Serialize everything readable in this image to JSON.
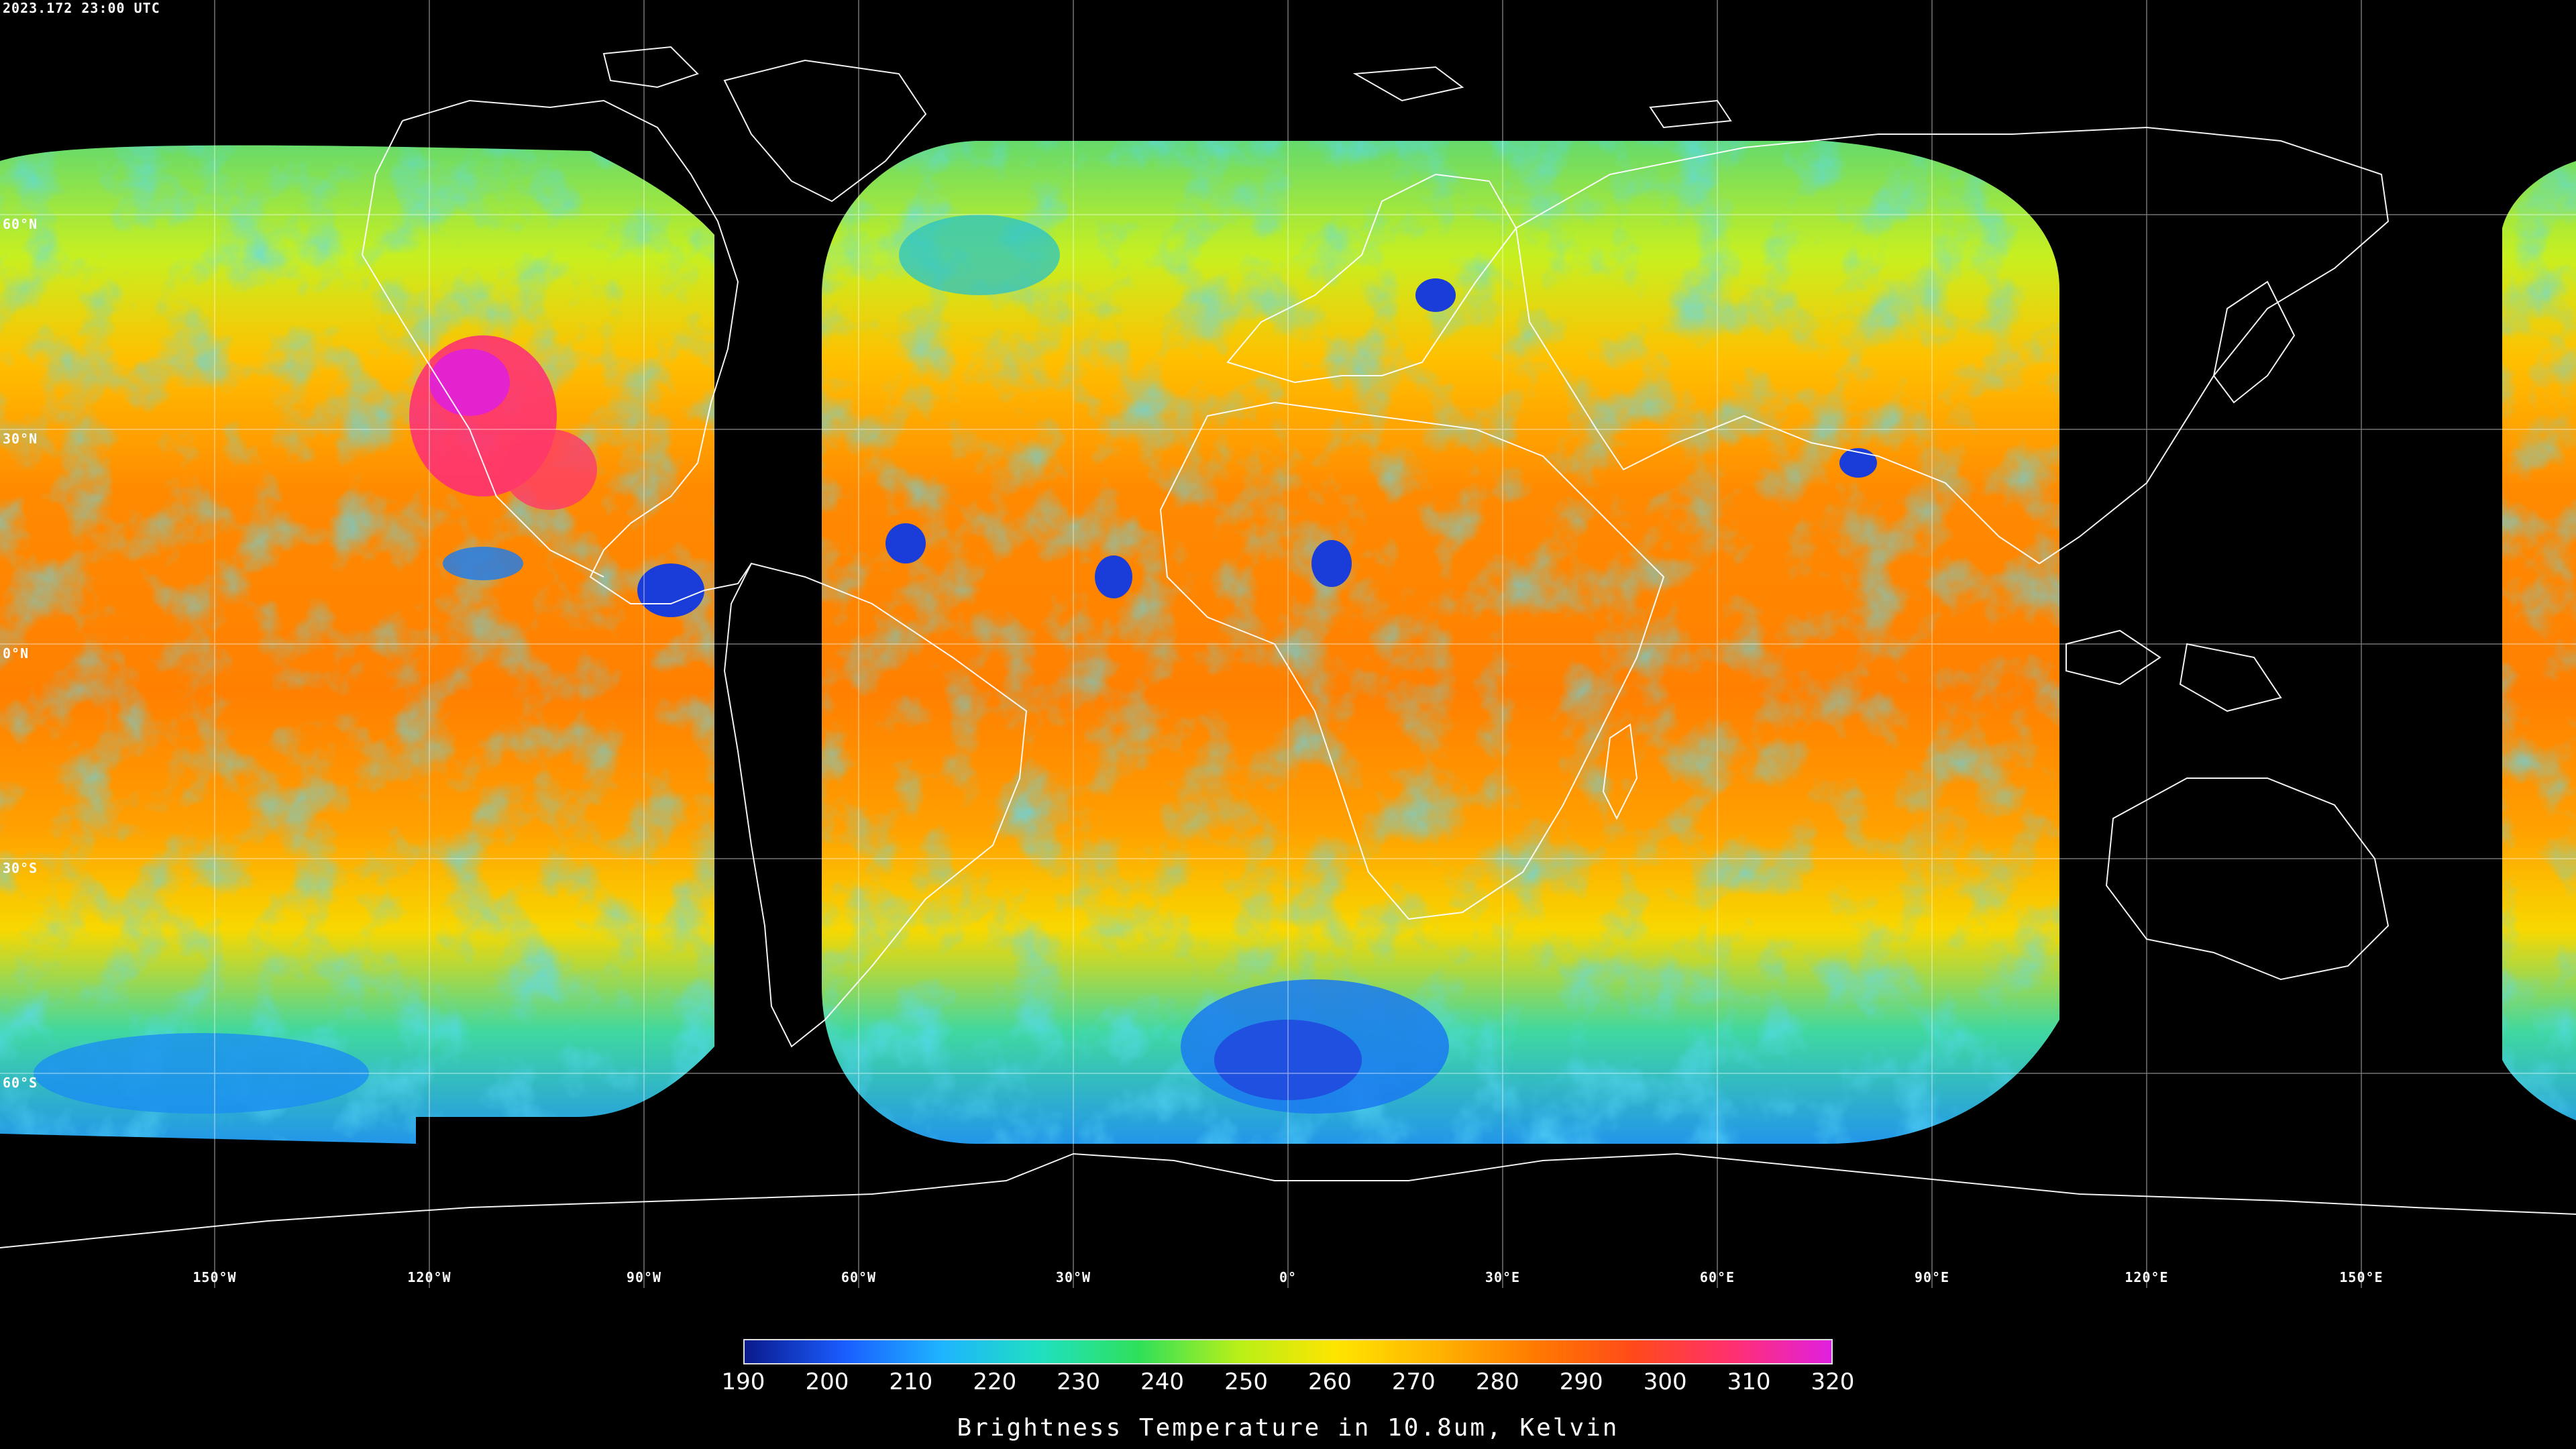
{
  "timestamp": "2023.172 23:00 UTC",
  "lat_labels": [
    {
      "text": "60°N",
      "lat": 60
    },
    {
      "text": "30°N",
      "lat": 30
    },
    {
      "text": "0°N",
      "lat": 0
    },
    {
      "text": "30°S",
      "lat": -30
    },
    {
      "text": "60°S",
      "lat": -60
    }
  ],
  "lon_labels": [
    {
      "text": "150°W",
      "lon": -150
    },
    {
      "text": "120°W",
      "lon": -120
    },
    {
      "text": "90°W",
      "lon": -90
    },
    {
      "text": "60°W",
      "lon": -60
    },
    {
      "text": "30°W",
      "lon": -30
    },
    {
      "text": "0°",
      "lon": 0
    },
    {
      "text": "30°E",
      "lon": 30
    },
    {
      "text": "60°E",
      "lon": 60
    },
    {
      "text": "90°E",
      "lon": 90
    },
    {
      "text": "120°E",
      "lon": 120
    },
    {
      "text": "150°E",
      "lon": 150
    }
  ],
  "colorbar": {
    "title": "Brightness Temperature in 10.8um, Kelvin",
    "min": 190,
    "max": 320,
    "ticks": [
      "190",
      "200",
      "210",
      "220",
      "230",
      "240",
      "250",
      "260",
      "270",
      "280",
      "290",
      "300",
      "310",
      "320"
    ],
    "colors": [
      "#0a1a8c",
      "#1a5cff",
      "#1fb4ff",
      "#1fe0c0",
      "#30e05a",
      "#b8f018",
      "#ffe400",
      "#ffb400",
      "#ff7a00",
      "#ff4a1a",
      "#ff3070",
      "#e020e0"
    ]
  },
  "map": {
    "projection": "equirectangular",
    "gridlines": "on",
    "lat_spacing": 30,
    "lon_spacing": 30
  }
}
